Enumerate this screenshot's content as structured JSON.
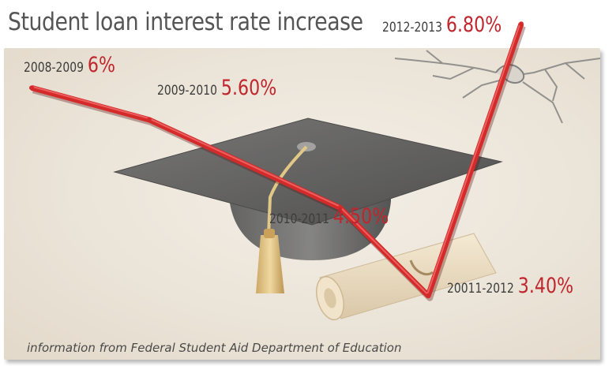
{
  "chart_data": {
    "type": "line",
    "title": "Student loan interest rate increase",
    "categories": [
      "2008-2009",
      "2009-2010",
      "2010-2011",
      "20011-2012",
      "2012-2013"
    ],
    "values": [
      6.0,
      5.6,
      4.5,
      3.4,
      6.8
    ],
    "value_labels": [
      "6%",
      "5.60%",
      "4.50%",
      "3.40%",
      "6.80%"
    ],
    "ylim": [
      3.2,
      7.0
    ],
    "grid": false,
    "series_color": "#d42a2a",
    "source": "information from Federal Student Aid Department of Education"
  },
  "colors": {
    "line": "#d42a2a",
    "value_text": "#c0262d",
    "title_text": "#555555",
    "panel_background": "#ece5d9"
  },
  "decorations": [
    "graduation-cap-illustration",
    "diploma-scroll-illustration",
    "cracked-wall-illustration"
  ]
}
